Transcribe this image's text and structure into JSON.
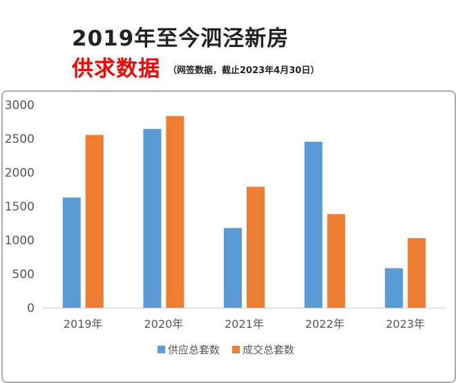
{
  "header": {
    "title": "2019年至今泗泾新房",
    "subtitle": "供求数据",
    "note": "（网签数据，截止2023年4月30日）"
  },
  "chart_data": {
    "type": "bar",
    "categories": [
      "2019年",
      "2020年",
      "2021年",
      "2022年",
      "2023年"
    ],
    "series": [
      {
        "name": "供应总套数",
        "color": "#5b9bd5",
        "values": [
          1630,
          2645,
          1180,
          2455,
          585
        ]
      },
      {
        "name": "成交总套数",
        "color": "#ed7d31",
        "values": [
          2555,
          2835,
          1790,
          1385,
          1030
        ]
      }
    ],
    "yticks": [
      0,
      500,
      1000,
      1500,
      2000,
      2500,
      3000
    ],
    "ylim": [
      0,
      3000
    ],
    "grid": false,
    "legend": "bottom"
  }
}
